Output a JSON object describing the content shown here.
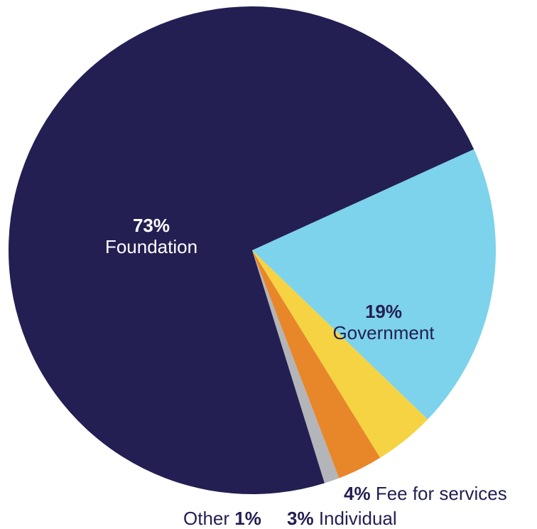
{
  "chart_data": {
    "type": "pie",
    "categories": [
      "Government",
      "Fee for services",
      "Individual",
      "Other",
      "Foundation"
    ],
    "values": [
      19,
      4,
      3,
      1,
      73
    ],
    "labels": [
      "19%",
      "4%",
      "3%",
      "1%",
      "73%"
    ],
    "colors": [
      "#7dd3eb",
      "#f5d342",
      "#e8862a",
      "#b3b5b8",
      "#231f52"
    ],
    "title": ""
  },
  "style": {
    "label_dark": "#231f52",
    "label_light": "#ffffff",
    "label_text": "#231f52"
  }
}
